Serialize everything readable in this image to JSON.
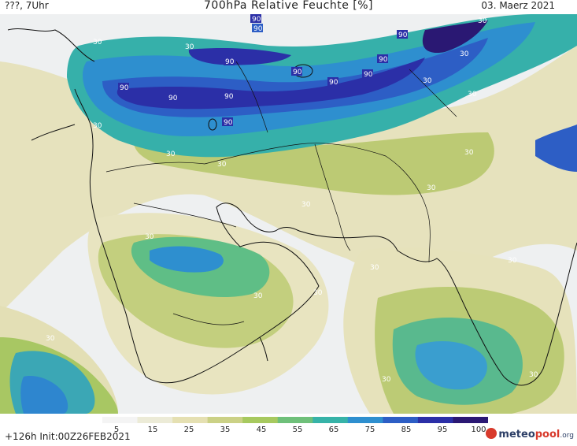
{
  "header": {
    "left": "???, 7Uhr",
    "title": "700hPa Relative Feuchte [%]",
    "right": "03. Maerz 2021"
  },
  "colorbar": {
    "ticks": [
      "5",
      "15",
      "25",
      "35",
      "45",
      "55",
      "65",
      "75",
      "85",
      "95",
      "100"
    ],
    "colors": [
      "#f4f4f4",
      "#ecebd7",
      "#e5e0b2",
      "#cbd186",
      "#a7c95f",
      "#6fc07a",
      "#37b3a8",
      "#2e8fcf",
      "#2d5ec5",
      "#2b2fa7",
      "#2a1873"
    ]
  },
  "footer": {
    "run_info": "+126h Init:00Z26FEB2021",
    "logo_meteo": "meteo",
    "logo_pool": "pool",
    "logo_org": ".org"
  },
  "contour_labels": [
    "90",
    "90",
    "90",
    "90",
    "90",
    "90",
    "90",
    "90",
    "90",
    "90",
    "90",
    "90",
    "30",
    "30",
    "30",
    "30",
    "30",
    "30",
    "30",
    "30",
    "30",
    "30",
    "30",
    "30",
    "30",
    "30",
    "30",
    "30",
    "30",
    "30",
    "30",
    "30"
  ]
}
